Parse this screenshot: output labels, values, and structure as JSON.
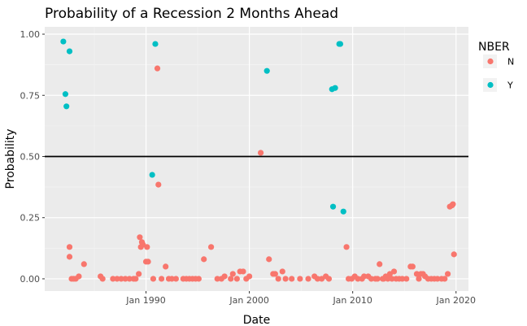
{
  "chart_data": {
    "type": "scatter",
    "title": "Probability of a Recession 2 Months Ahead",
    "xlabel": "Date",
    "ylabel": "Probability",
    "xlim": [
      1980.2,
      2021.2
    ],
    "ylim": [
      -0.05,
      1.03
    ],
    "x_ticks": [
      1990,
      2000,
      2010,
      2020
    ],
    "x_tick_labels": [
      "Jan 1990",
      "Jan 2000",
      "Jan 2010",
      "Jan 2020"
    ],
    "y_ticks": [
      0.0,
      0.25,
      0.5,
      0.75,
      1.0
    ],
    "y_tick_labels": [
      "0.00",
      "0.25",
      "0.50",
      "0.75",
      "1.00"
    ],
    "reference_line": {
      "y": 0.5
    },
    "legend": {
      "title": "NBER",
      "position": "right",
      "entries": [
        {
          "label": "N",
          "color": "#F8766D"
        },
        {
          "label": "Y",
          "color": "#00BFC4"
        }
      ]
    },
    "series": [
      {
        "name": "N",
        "color": "#F8766D",
        "points": [
          [
            1982.6,
            0.13
          ],
          [
            1982.6,
            0.09
          ],
          [
            1982.8,
            0.0
          ],
          [
            1983.0,
            0.0
          ],
          [
            1983.2,
            0.0
          ],
          [
            1983.5,
            0.01
          ],
          [
            1984.0,
            0.06
          ],
          [
            1985.6,
            0.01
          ],
          [
            1985.8,
            0.0
          ],
          [
            1986.8,
            0.0
          ],
          [
            1987.2,
            0.0
          ],
          [
            1987.6,
            0.0
          ],
          [
            1988.0,
            0.0
          ],
          [
            1988.4,
            0.0
          ],
          [
            1988.8,
            0.0
          ],
          [
            1989.0,
            0.0
          ],
          [
            1989.3,
            0.02
          ],
          [
            1989.4,
            0.17
          ],
          [
            1989.6,
            0.15
          ],
          [
            1989.5,
            0.13
          ],
          [
            1989.7,
            0.14
          ],
          [
            1990.0,
            0.07
          ],
          [
            1990.2,
            0.07
          ],
          [
            1990.1,
            0.13
          ],
          [
            1990.7,
            0.0
          ],
          [
            1991.1,
            0.86
          ],
          [
            1991.2,
            0.385
          ],
          [
            1991.5,
            0.0
          ],
          [
            1991.9,
            0.05
          ],
          [
            1992.2,
            0.0
          ],
          [
            1992.5,
            0.0
          ],
          [
            1992.9,
            0.0
          ],
          [
            1993.6,
            0.0
          ],
          [
            1993.9,
            0.0
          ],
          [
            1994.2,
            0.0
          ],
          [
            1994.5,
            0.0
          ],
          [
            1994.8,
            0.0
          ],
          [
            1995.1,
            0.0
          ],
          [
            1995.6,
            0.08
          ],
          [
            1996.3,
            0.13
          ],
          [
            1996.9,
            0.0
          ],
          [
            1997.3,
            0.0
          ],
          [
            1997.6,
            0.01
          ],
          [
            1998.2,
            0.0
          ],
          [
            1998.4,
            0.02
          ],
          [
            1998.8,
            0.0
          ],
          [
            1999.1,
            0.03
          ],
          [
            1999.4,
            0.03
          ],
          [
            1999.7,
            0.0
          ],
          [
            2000.0,
            0.01
          ],
          [
            2001.1,
            0.515
          ],
          [
            2001.9,
            0.08
          ],
          [
            2002.3,
            0.02
          ],
          [
            2002.5,
            0.02
          ],
          [
            2002.8,
            0.0
          ],
          [
            2003.2,
            0.03
          ],
          [
            2003.5,
            0.0
          ],
          [
            2004.1,
            0.0
          ],
          [
            2004.9,
            0.0
          ],
          [
            2005.7,
            0.0
          ],
          [
            2006.3,
            0.01
          ],
          [
            2006.6,
            0.0
          ],
          [
            2007.0,
            0.0
          ],
          [
            2007.4,
            0.01
          ],
          [
            2007.7,
            0.0
          ],
          [
            2009.4,
            0.13
          ],
          [
            2009.6,
            0.0
          ],
          [
            2009.9,
            0.0
          ],
          [
            2010.2,
            0.01
          ],
          [
            2010.5,
            0.0
          ],
          [
            2010.9,
            0.0
          ],
          [
            2011.1,
            0.01
          ],
          [
            2011.5,
            0.01
          ],
          [
            2011.8,
            0.0
          ],
          [
            2012.2,
            0.0
          ],
          [
            2012.4,
            0.0
          ],
          [
            2012.6,
            0.06
          ],
          [
            2012.9,
            0.0
          ],
          [
            2013.0,
            0.0
          ],
          [
            2013.2,
            0.01
          ],
          [
            2013.4,
            0.0
          ],
          [
            2013.6,
            0.02
          ],
          [
            2013.8,
            0.0
          ],
          [
            2014.0,
            0.03
          ],
          [
            2014.2,
            0.0
          ],
          [
            2014.5,
            0.0
          ],
          [
            2014.8,
            0.0
          ],
          [
            2015.2,
            0.0
          ],
          [
            2015.6,
            0.05
          ],
          [
            2015.8,
            0.05
          ],
          [
            2016.2,
            0.02
          ],
          [
            2016.4,
            0.0
          ],
          [
            2016.6,
            0.02
          ],
          [
            2016.8,
            0.02
          ],
          [
            2017.0,
            0.01
          ],
          [
            2017.3,
            0.0
          ],
          [
            2017.6,
            0.0
          ],
          [
            2017.9,
            0.0
          ],
          [
            2018.2,
            0.0
          ],
          [
            2018.6,
            0.0
          ],
          [
            2018.9,
            0.0
          ],
          [
            2019.2,
            0.02
          ],
          [
            2019.4,
            0.295
          ],
          [
            2019.6,
            0.3
          ],
          [
            2019.7,
            0.305
          ],
          [
            2019.8,
            0.1
          ]
        ]
      },
      {
        "name": "Y",
        "color": "#00BFC4",
        "points": [
          [
            1982.0,
            0.97
          ],
          [
            1982.2,
            0.755
          ],
          [
            1982.3,
            0.705
          ],
          [
            1982.6,
            0.93
          ],
          [
            1990.6,
            0.425
          ],
          [
            1990.9,
            0.96
          ],
          [
            2001.7,
            0.85
          ],
          [
            2008.0,
            0.775
          ],
          [
            2008.3,
            0.78
          ],
          [
            2008.7,
            0.96
          ],
          [
            2008.8,
            0.96
          ],
          [
            2008.1,
            0.295
          ],
          [
            2009.1,
            0.275
          ]
        ]
      }
    ]
  }
}
